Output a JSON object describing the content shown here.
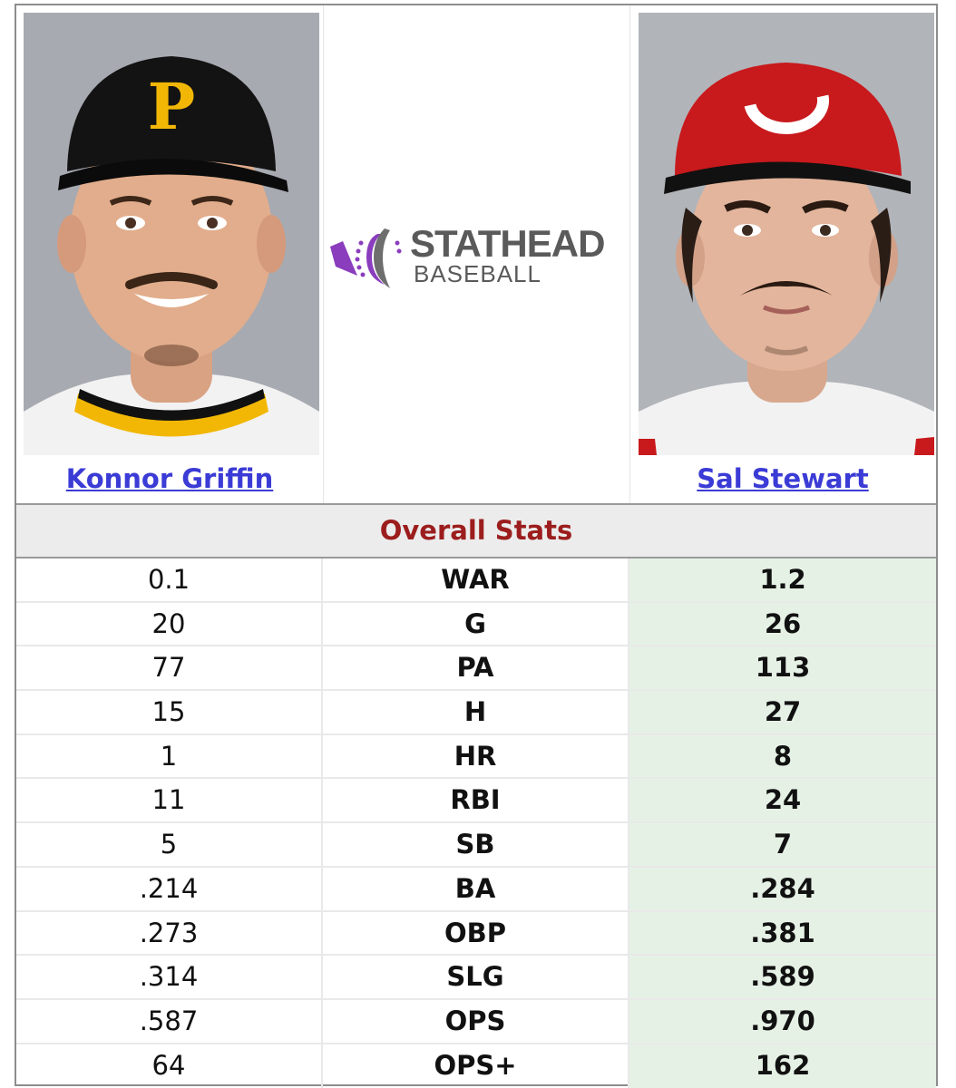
{
  "players": [
    {
      "name": "Konnor Griffin",
      "team_cap_letter": "P",
      "cap_color": "#111111",
      "accent": "#f2b705"
    },
    {
      "name": "Sal Stewart",
      "team_cap_letter": "C",
      "cap_color": "#c8191c",
      "accent": "#ffffff"
    }
  ],
  "logo": {
    "line1": "STATHEAD",
    "line2": "BASEBALL",
    "accent": "#8a3dbd",
    "icon": "stathead-logo-icon"
  },
  "section_title": "Overall Stats",
  "stats": [
    {
      "left": "0.1",
      "stat": "WAR",
      "right": "1.2"
    },
    {
      "left": "20",
      "stat": "G",
      "right": "26"
    },
    {
      "left": "77",
      "stat": "PA",
      "right": "113"
    },
    {
      "left": "15",
      "stat": "H",
      "right": "27"
    },
    {
      "left": "1",
      "stat": "HR",
      "right": "8"
    },
    {
      "left": "11",
      "stat": "RBI",
      "right": "24"
    },
    {
      "left": "5",
      "stat": "SB",
      "right": "7"
    },
    {
      "left": ".214",
      "stat": "BA",
      "right": ".284"
    },
    {
      "left": ".273",
      "stat": "OBP",
      "right": ".381"
    },
    {
      "left": ".314",
      "stat": "SLG",
      "right": ".589"
    },
    {
      "left": ".587",
      "stat": "OPS",
      "right": ".970"
    },
    {
      "left": "64",
      "stat": "OPS+",
      "right": "162"
    }
  ],
  "colors": {
    "link": "#3b3bd6",
    "section_title": "#9c1d1d",
    "winner_bg": "#e6f1e6"
  }
}
